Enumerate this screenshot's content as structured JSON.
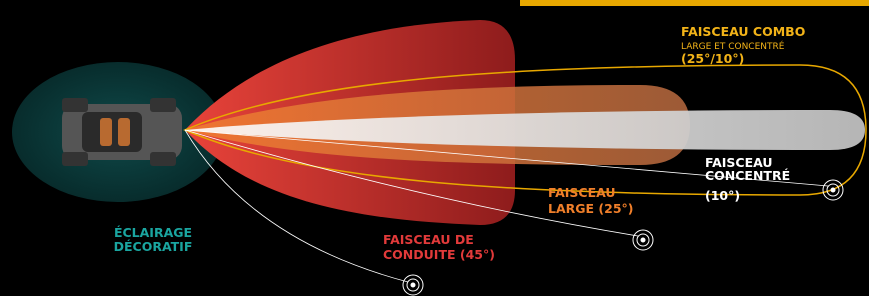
{
  "labels": {
    "combo": {
      "title": "FAISCEAU COMBO",
      "subtitle": "LARGE ET CONCENTRÉ",
      "angle": "(25°/10°)"
    },
    "concentre": {
      "lines": [
        "FAISCEAU",
        "CONCENTRÉ",
        "(10°)"
      ]
    },
    "large": {
      "lines": [
        "FAISCEAU",
        "LARGE (25°)"
      ]
    },
    "conduite": {
      "lines": [
        "FAISCEAU DE",
        "CONDUITE (45°)"
      ]
    },
    "decoratif": {
      "lines": [
        "ÉCLAIRAGE",
        "DÉCORATIF"
      ]
    }
  }
}
